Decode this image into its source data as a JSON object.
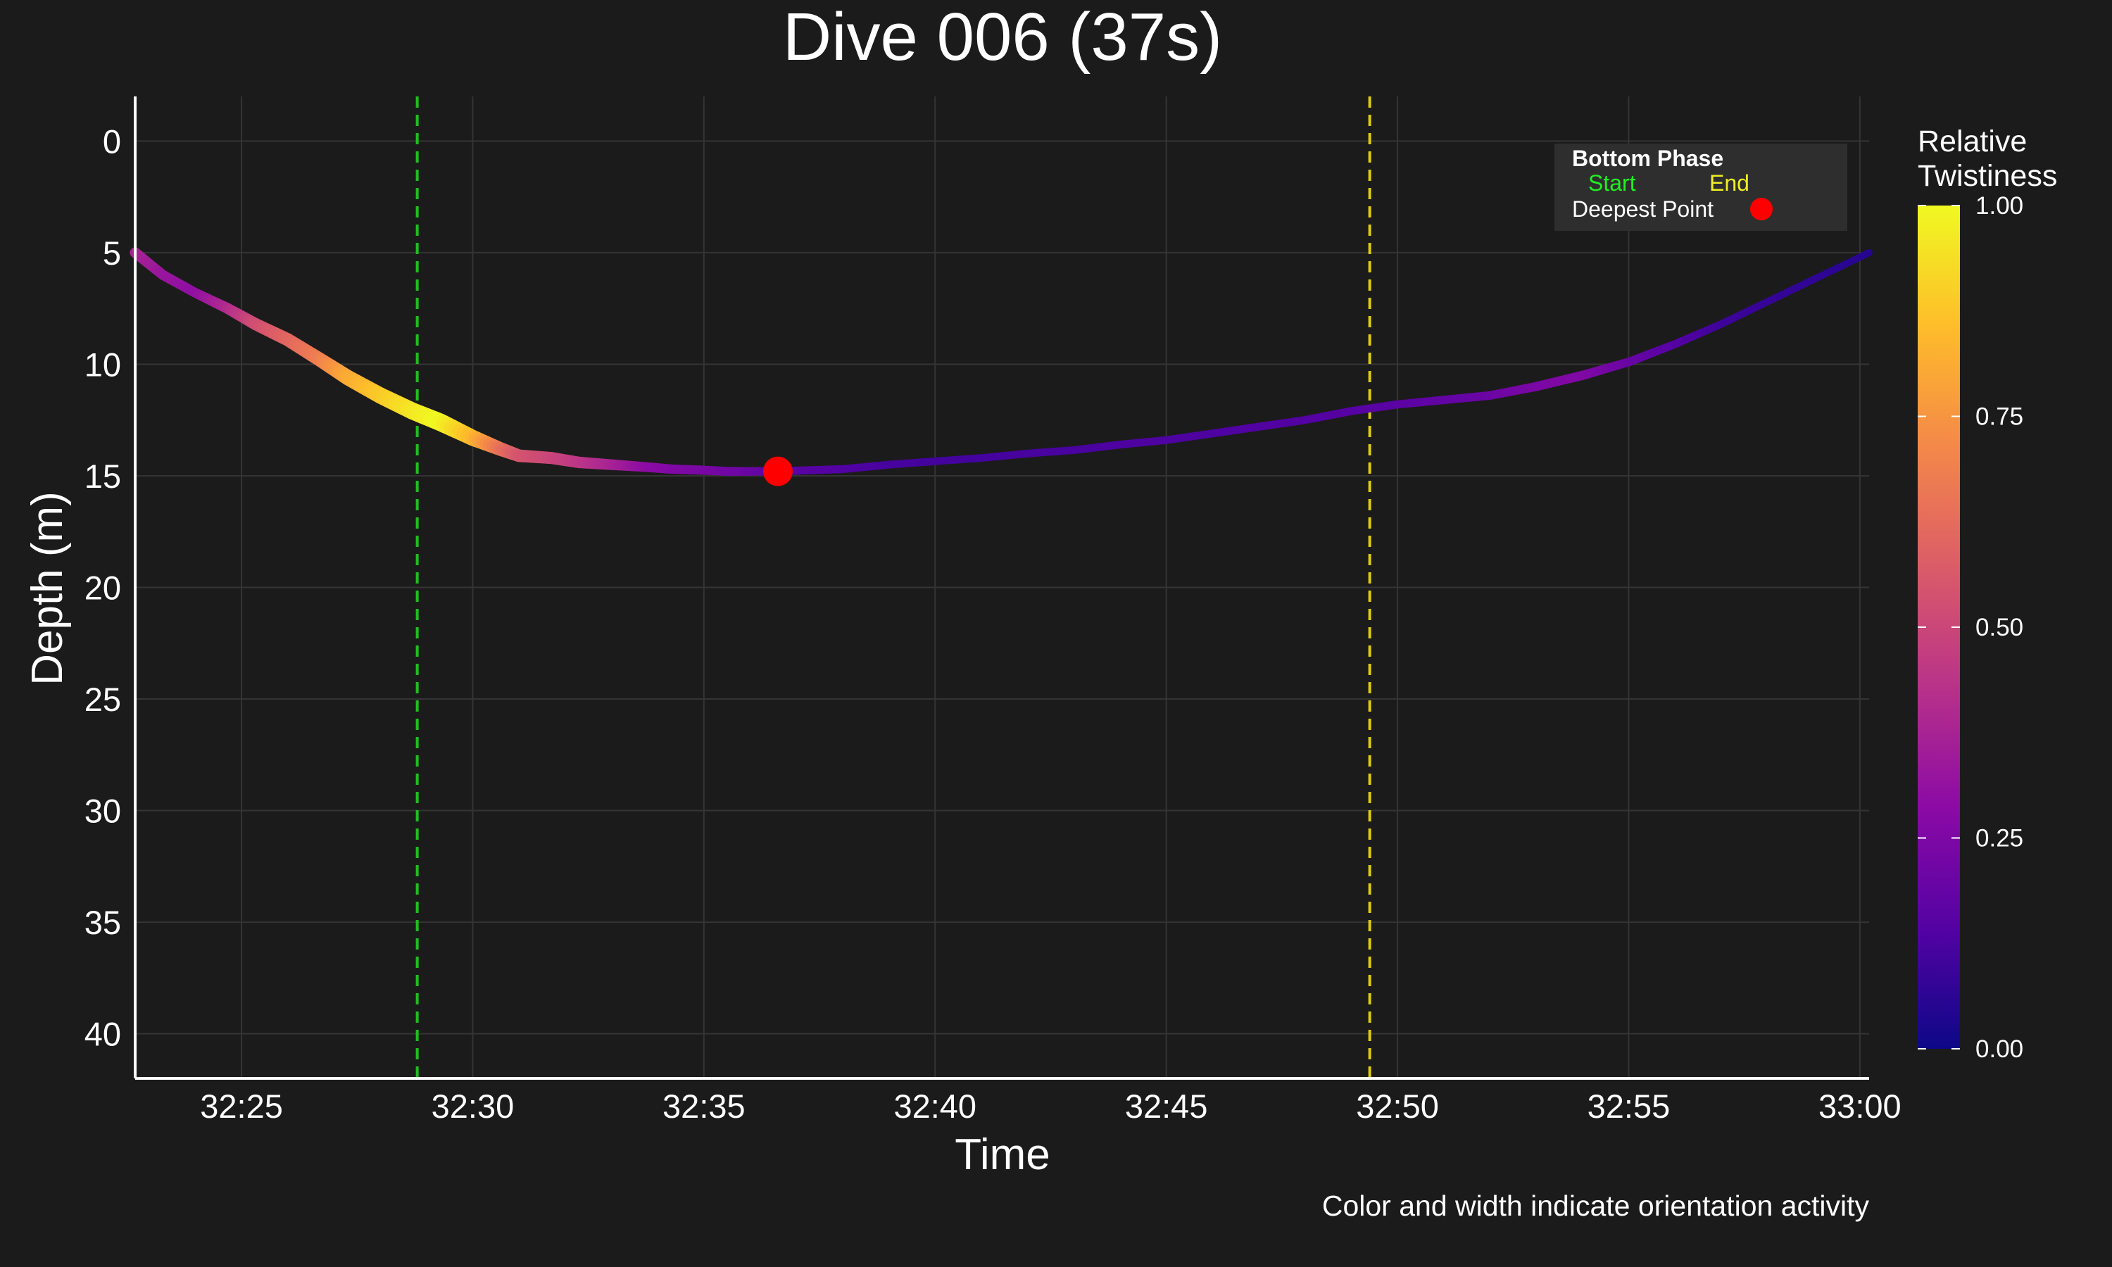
{
  "chart_data": {
    "type": "line",
    "title": "Dive 006 (37s)",
    "xlabel": "Time",
    "ylabel": "Depth (m)",
    "caption": "Color and width indicate orientation activity",
    "x_ticks": [
      "32:25",
      "32:30",
      "32:35",
      "32:40",
      "32:45",
      "32:50",
      "32:55",
      "33:00"
    ],
    "x_tick_values": [
      1945,
      1950,
      1955,
      1960,
      1965,
      1970,
      1975,
      1980
    ],
    "xlim": [
      1942.7,
      1980.2
    ],
    "y_ticks": [
      "0",
      "5",
      "10",
      "15",
      "20",
      "25",
      "30",
      "35",
      "40"
    ],
    "y_tick_values": [
      0,
      5,
      10,
      15,
      20,
      25,
      30,
      35,
      40
    ],
    "ylim": [
      42,
      -2
    ],
    "y_inverted": true,
    "grid": true,
    "series": [
      {
        "x": [
          1942.7,
          1943.3,
          1944.0,
          1944.7,
          1945.3,
          1946.0,
          1946.7,
          1947.3,
          1948.0,
          1948.7,
          1949.3,
          1950.0,
          1950.6,
          1951.0,
          1951.7,
          1952.3,
          1953.0,
          1953.7,
          1954.3,
          1955.0,
          1955.5,
          1956.0,
          1956.6,
          1957.3,
          1958.0,
          1959.0,
          1960.0,
          1961.0,
          1962.0,
          1963.0,
          1964.0,
          1965.0,
          1966.0,
          1967.0,
          1968.0,
          1969.0,
          1970.0,
          1971.0,
          1972.0,
          1973.0,
          1974.0,
          1975.0,
          1976.0,
          1977.0,
          1978.0,
          1979.0,
          1980.2
        ],
        "y": [
          5.0,
          6.0,
          6.8,
          7.5,
          8.2,
          8.9,
          9.8,
          10.6,
          11.4,
          12.1,
          12.6,
          13.3,
          13.8,
          14.1,
          14.2,
          14.4,
          14.5,
          14.6,
          14.7,
          14.75,
          14.8,
          14.8,
          14.8,
          14.75,
          14.7,
          14.5,
          14.35,
          14.2,
          14.0,
          13.85,
          13.6,
          13.4,
          13.1,
          12.8,
          12.5,
          12.1,
          11.8,
          11.6,
          11.4,
          11.0,
          10.5,
          9.9,
          9.1,
          8.2,
          7.2,
          6.2,
          5.0
        ],
        "twistiness": [
          0.38,
          0.33,
          0.3,
          0.4,
          0.52,
          0.6,
          0.68,
          0.8,
          0.88,
          0.95,
          1.0,
          0.85,
          0.65,
          0.55,
          0.5,
          0.45,
          0.38,
          0.3,
          0.26,
          0.24,
          0.22,
          0.2,
          0.16,
          0.15,
          0.14,
          0.12,
          0.11,
          0.11,
          0.12,
          0.12,
          0.13,
          0.13,
          0.13,
          0.14,
          0.14,
          0.15,
          0.16,
          0.18,
          0.2,
          0.24,
          0.26,
          0.2,
          0.15,
          0.1,
          0.08,
          0.07,
          0.05
        ]
      }
    ],
    "bottom_phase": {
      "start": 1948.8,
      "end": 1969.4,
      "start_color": "#1fbf1f",
      "end_color": "#ddcc11"
    },
    "deepest_point": {
      "x": 1956.6,
      "y": 14.8,
      "color": "#ff0000"
    },
    "legend": {
      "position": "top-right",
      "title": "Bottom Phase",
      "start_label": "Start",
      "end_label": "End",
      "deepest_label": "Deepest Point"
    },
    "colorbar": {
      "title_line1": "Relative",
      "title_line2": "Twistiness",
      "ticks": [
        "1.00",
        "0.75",
        "0.50",
        "0.25",
        "0.00"
      ],
      "tick_values": [
        1.0,
        0.75,
        0.5,
        0.25,
        0.0
      ],
      "colormap": "plasma",
      "stops": [
        "#0d0887",
        "#5402a3",
        "#8b0aa5",
        "#b83289",
        "#db5c68",
        "#f48849",
        "#febd2a",
        "#f0f921"
      ]
    }
  }
}
